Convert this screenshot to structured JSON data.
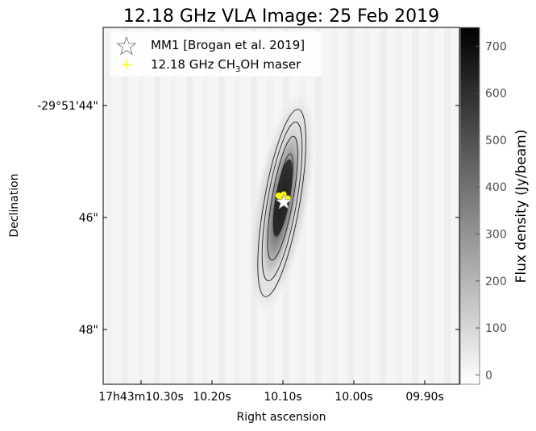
{
  "chart_data": {
    "type": "heatmap",
    "title": "12.18 GHz VLA Image: 25 Feb 2019",
    "xlabel": "Right ascension",
    "ylabel": "Declination",
    "x_ticks": [
      "17h43m10.30s",
      "10.20s",
      "10.10s",
      "10.00s",
      "09.90s"
    ],
    "y_ticks": [
      "-29°51'44\"",
      "46\"",
      "48\""
    ],
    "colorbar": {
      "label": "Flux density (Jy/beam)",
      "ticks": [
        0,
        100,
        200,
        300,
        400,
        500,
        600,
        700
      ],
      "range": [
        -20,
        740
      ],
      "colormap": "gray_r"
    },
    "legend": {
      "placement": "top-left",
      "items": [
        {
          "label": "MM1 [Brogan et al. 2019]",
          "marker": "star-icon"
        },
        {
          "label_prefix": "12.18 GHz CH",
          "label_sub": "3",
          "label_suffix": "OH maser",
          "marker": "plus-icon",
          "color": "#ffff00"
        }
      ]
    },
    "source": {
      "name": "MM1",
      "peak_flux": 720,
      "ra": "17h43m10.10s",
      "dec": "-29°51'45.7\"",
      "shape": "elongated north-south, slight tilt",
      "contour_levels": [
        0.2,
        0.4,
        0.6,
        0.8
      ]
    },
    "maser_color": "#ffff00",
    "grid": false
  }
}
